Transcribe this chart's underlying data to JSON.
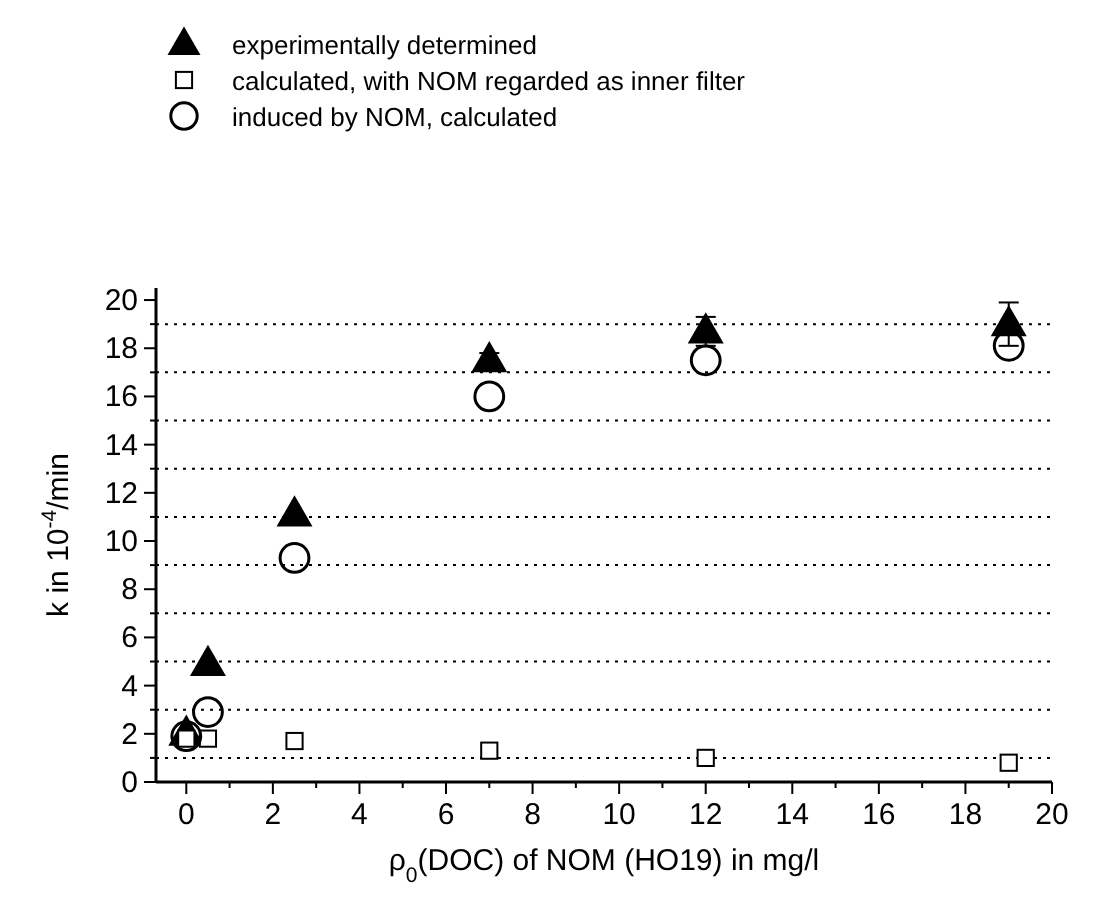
{
  "chart_data": {
    "type": "scatter",
    "xlabel": "ρ$_{0}$(DOC) of NOM (HO19) in mg/l",
    "ylabel": "k in 10$^{-4}$/min",
    "xlim": [
      -0.7,
      20
    ],
    "ylim": [
      0,
      20.5
    ],
    "xticks": [
      0,
      {
        "value": 1,
        "label": null
      },
      2,
      {
        "value": 3,
        "label": null
      },
      4,
      {
        "value": 5,
        "label": null
      },
      6,
      {
        "value": 7,
        "label": null
      },
      8,
      {
        "value": 9,
        "label": null
      },
      10,
      {
        "value": 11,
        "label": null
      },
      12,
      {
        "value": 13,
        "label": null
      },
      14,
      {
        "value": 15,
        "label": null
      },
      16,
      {
        "value": 17,
        "label": null
      },
      18,
      {
        "value": 19,
        "label": null
      },
      20
    ],
    "yticks": [
      0,
      {
        "value": 1,
        "label": null
      },
      2,
      {
        "value": 3,
        "label": null
      },
      4,
      {
        "value": 5,
        "label": null
      },
      6,
      {
        "value": 7,
        "label": null
      },
      8,
      {
        "value": 9,
        "label": null
      },
      10,
      {
        "value": 11,
        "label": null
      },
      12,
      {
        "value": 13,
        "label": null
      },
      14,
      {
        "value": 15,
        "label": null
      },
      16,
      {
        "value": 17,
        "label": null
      },
      18,
      {
        "value": 19,
        "label": null
      },
      20
    ],
    "grid": "y",
    "legend": "top left",
    "series": [
      {
        "name": "experimentally determined",
        "color": "#000000",
        "marker": "triangle",
        "x": [
          0,
          0.5,
          2.5,
          7,
          12,
          19
        ],
        "values": [
          2.0,
          4.9,
          11.1,
          17.5,
          18.7,
          19.0
        ],
        "errors": [
          null,
          null,
          null,
          0.3,
          0.6,
          0.9
        ]
      },
      {
        "name": "calculated, with NOM regarded as inner filter",
        "color": "#000000",
        "marker": "square",
        "x": [
          0,
          0.5,
          2.5,
          7,
          12,
          19
        ],
        "values": [
          1.8,
          1.8,
          1.7,
          1.3,
          1.0,
          0.8
        ]
      },
      {
        "name": "induced by NOM, calculated",
        "color": "#000000",
        "marker": "circle",
        "x": [
          0,
          0.5,
          2.5,
          7,
          12,
          19
        ],
        "values": [
          1.9,
          2.9,
          9.3,
          16.0,
          17.5,
          18.1
        ]
      }
    ]
  }
}
